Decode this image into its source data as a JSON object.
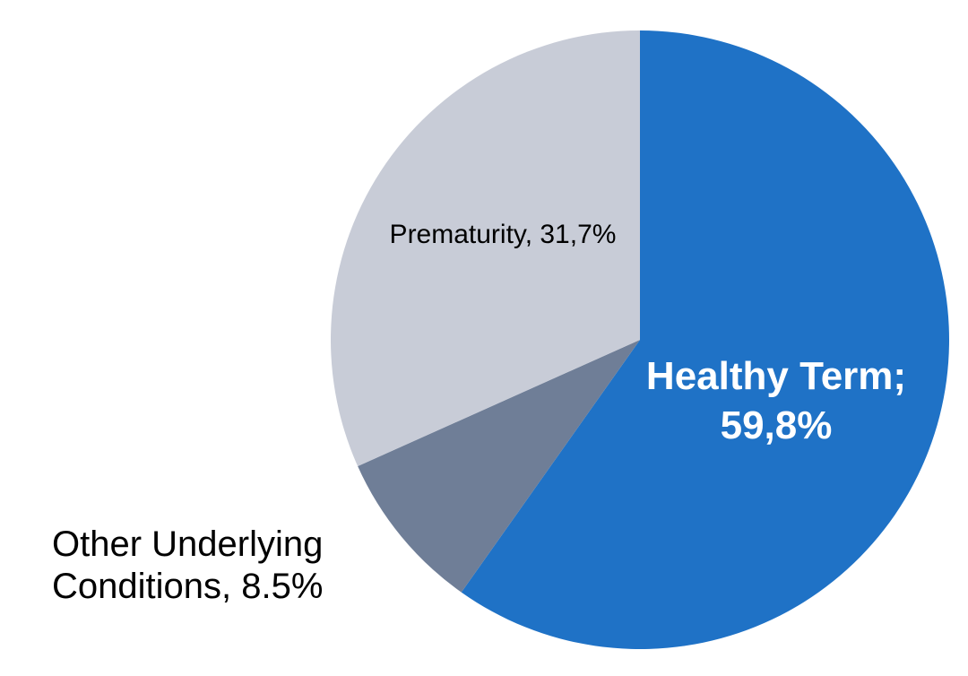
{
  "chart_data": {
    "type": "pie",
    "title": "",
    "unit": "%",
    "total": 100,
    "start_angle_deg": 0,
    "direction": "clockwise",
    "legend": "none",
    "background": "#FFFFFF",
    "slices": [
      {
        "id": "healthy-term",
        "label": "Healthy Term",
        "value": 59.8,
        "display": "Healthy Term; 59,8%",
        "color": "#1F72C6",
        "label_placement": "inside",
        "label_color": "#FFFFFF"
      },
      {
        "id": "other-underlying-conditions",
        "label": "Other Underlying Conditions",
        "value": 8.5,
        "display": "Other Underlying Conditions, 8.5%",
        "color": "#6F7E97",
        "label_placement": "outside-lower-left",
        "label_color": "#000000"
      },
      {
        "id": "prematurity",
        "label": "Prematurity",
        "value": 31.7,
        "display": "Prematurity, 31,7%",
        "color": "#C8CCD7",
        "label_placement": "inside",
        "label_color": "#000000"
      }
    ]
  },
  "labels": {
    "healthy_term": {
      "line1": "Healthy Term;",
      "line2": "59,8%"
    },
    "prematurity": {
      "text": "Prematurity, 31,7%"
    },
    "other": {
      "line1": "Other Underlying",
      "line2": "Conditions, 8.5%"
    }
  }
}
